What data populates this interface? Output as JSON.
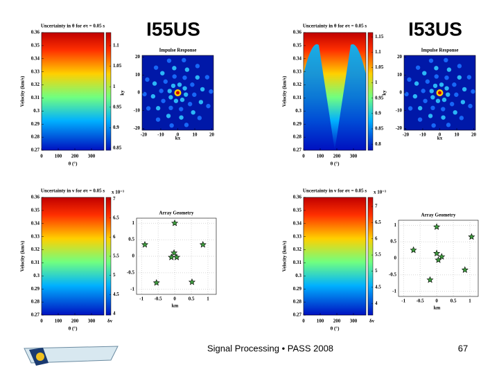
{
  "header": {
    "left_title": "I55US",
    "right_title": "I53US"
  },
  "footer": {
    "text": "Signal Processing • PASS 2008",
    "page": "67"
  },
  "heatmaps": [
    {
      "title": "Uncertainty in θ for στ = 0.05 s",
      "ylabel": "Velocity (km/s)",
      "xlabel": "θ (°)",
      "xlim": [
        0,
        375
      ],
      "xticks": [
        0,
        100,
        200,
        300
      ],
      "ylim": [
        0.27,
        0.36
      ],
      "yticks": [
        0.27,
        0.28,
        0.29,
        0.3,
        0.31,
        0.32,
        0.33,
        0.34,
        0.35,
        0.36
      ],
      "clim": [
        0.845,
        1.132
      ],
      "cticks": [
        0.85,
        0.9,
        0.95,
        1,
        1.05,
        1.1
      ]
    },
    {
      "title": "Uncertainty in θ for στ = 0.05 s",
      "ylabel": "Velocity (km/s)",
      "xlabel": "θ (°)",
      "xlim": [
        0,
        375
      ],
      "xticks": [
        0,
        100,
        200,
        300
      ],
      "ylim": [
        0.27,
        0.36
      ],
      "yticks": [
        0.27,
        0.28,
        0.29,
        0.3,
        0.31,
        0.32,
        0.33,
        0.34,
        0.35,
        0.36
      ],
      "clim": [
        0.78,
        1.164
      ],
      "cticks": [
        0.8,
        0.85,
        0.9,
        0.95,
        1,
        1.05,
        1.1,
        1.15
      ]
    },
    {
      "title": "Uncertainty in v for στ = 0.05 s",
      "ylabel": "Velocity (km/s)",
      "xlabel": "θ (°)",
      "xlim": [
        0,
        375
      ],
      "xticks": [
        0,
        100,
        200,
        300
      ],
      "ylim": [
        0.27,
        0.36
      ],
      "yticks": [
        0.27,
        0.28,
        0.29,
        0.3,
        0.31,
        0.32,
        0.33,
        0.34,
        0.35,
        0.36
      ],
      "clim": [
        3.96,
        7.04
      ],
      "cticks": [
        4,
        4.5,
        5,
        5.5,
        6,
        6.5,
        7
      ],
      "cexp": "x 10⁻³",
      "clabel": "δv"
    },
    {
      "title": "Uncertainty in v for στ = 0.05 s",
      "ylabel": "Velocity (km/s)",
      "xlabel": "θ (°)",
      "xlim": [
        0,
        375
      ],
      "xticks": [
        0,
        100,
        200,
        300
      ],
      "ylim": [
        0.27,
        0.36
      ],
      "yticks": [
        0.27,
        0.28,
        0.29,
        0.3,
        0.31,
        0.32,
        0.33,
        0.34,
        0.35,
        0.36
      ],
      "clim": [
        3.64,
        7.28
      ],
      "cticks": [
        4,
        4.5,
        5,
        5.5,
        6,
        6.5,
        7
      ],
      "cexp": "x 10⁻³",
      "clabel": "δv"
    }
  ],
  "impulse": [
    {
      "title": "Impulse Response",
      "xlabel": "kx",
      "ylabel": "ky",
      "lim": [
        -21,
        21
      ],
      "ticks": [
        -20,
        -10,
        0,
        10,
        20
      ]
    },
    {
      "title": "Impulse Response",
      "xlabel": "kx",
      "ylabel": "ky",
      "lim": [
        -21,
        21
      ],
      "ticks": [
        -20,
        -10,
        0,
        10,
        20
      ]
    }
  ],
  "arrays": [
    {
      "title": "Array Geometry",
      "xlabel": "km",
      "xlim": [
        -1.15,
        1.25
      ],
      "ylim": [
        -1.15,
        1.15
      ],
      "xticks": [
        -1,
        -0.5,
        0,
        0.5,
        1
      ],
      "yticks": [
        -1,
        -0.5,
        0,
        0.5,
        1
      ],
      "x": [
        0,
        -0.9,
        0.85,
        -0.02,
        -0.1,
        0.06,
        -0.55,
        0.52
      ],
      "y": [
        1,
        0.35,
        0.35,
        0.1,
        -0.03,
        -0.03,
        -0.8,
        -0.78
      ]
    },
    {
      "title": "Array Geometry",
      "xlabel": "km",
      "xlim": [
        -1.15,
        1.25
      ],
      "ylim": [
        -1.15,
        1.15
      ],
      "xticks": [
        -1,
        -0.5,
        0,
        0.5,
        1
      ],
      "yticks": [
        -1,
        -0.5,
        0,
        0.5,
        1
      ],
      "x": [
        0,
        1.05,
        -0.7,
        0,
        0.15,
        0.05,
        -0.2,
        0.85
      ],
      "y": [
        0.95,
        0.65,
        0.25,
        0.15,
        0.05,
        -0.05,
        -0.65,
        -0.35
      ]
    }
  ]
}
